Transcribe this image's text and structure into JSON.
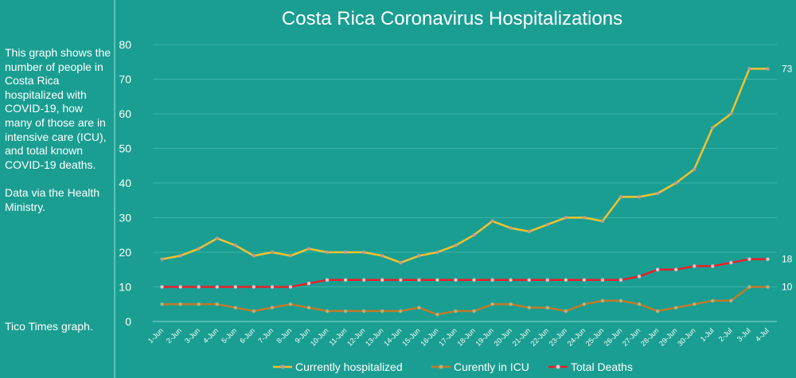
{
  "sidebar": {
    "description": "This graph shows the number of people in Costa Rica hospitalized with COVID-19, how many of those are in intensive care (ICU), and total known COVID-19 deaths.\n\nData via the Health Ministry.",
    "credit": "Tico Times graph."
  },
  "chart_data": {
    "type": "line",
    "title": "Costa Rica Coronavirus Hospitalizations",
    "xlabel": "",
    "ylabel": "",
    "ylim": [
      0,
      80
    ],
    "yticks": [
      "0",
      "10",
      "20",
      "30",
      "40",
      "50",
      "60",
      "70",
      "80"
    ],
    "grid": true,
    "legend_position": "bottom",
    "categories": [
      "1-Jun",
      "2-Jun",
      "3-Jun",
      "4-Jun",
      "5-Jun",
      "6-Jun",
      "7-Jun",
      "8-Jun",
      "9-Jun",
      "10-Jun",
      "11-Jun",
      "12-Jun",
      "13-Jun",
      "14-Jun",
      "15-Jun",
      "16-Jun",
      "17-Jun",
      "18-Jun",
      "19-Jun",
      "20-Jun",
      "21-Jun",
      "22-Jun",
      "23-Jun",
      "24-Jun",
      "25-Jun",
      "26-Jun",
      "27-Jun",
      "28-Jun",
      "29-Jun",
      "30-Jun",
      "1-Jul",
      "2-Jul",
      "3-Jul",
      "4-Jul"
    ],
    "series": [
      {
        "name": "Currently hospitalized",
        "color": "#f2c230",
        "marker_color": "#c49a8e",
        "values": [
          18,
          19,
          21,
          24,
          22,
          19,
          20,
          19,
          21,
          20,
          20,
          20,
          19,
          17,
          19,
          20,
          22,
          25,
          29,
          27,
          26,
          28,
          30,
          30,
          29,
          36,
          36,
          37,
          40,
          44,
          56,
          60,
          73,
          73
        ],
        "end_label": "73"
      },
      {
        "name": "Curently in ICU",
        "color": "#c17a2a",
        "marker_color": "#b7b07a",
        "values": [
          5,
          5,
          5,
          5,
          4,
          3,
          4,
          5,
          4,
          3,
          3,
          3,
          3,
          3,
          4,
          2,
          3,
          3,
          5,
          5,
          4,
          4,
          3,
          5,
          6,
          6,
          5,
          3,
          4,
          5,
          6,
          6,
          10,
          10
        ],
        "end_label": "10"
      },
      {
        "name": "Total Deaths",
        "color": "#e8202a",
        "marker_color": "#e8c8c8",
        "values": [
          10,
          10,
          10,
          10,
          10,
          10,
          10,
          10,
          11,
          12,
          12,
          12,
          12,
          12,
          12,
          12,
          12,
          12,
          12,
          12,
          12,
          12,
          12,
          12,
          12,
          12,
          13,
          15,
          15,
          16,
          16,
          17,
          18,
          18
        ],
        "end_label": "18"
      }
    ]
  },
  "colors": {
    "background": "#1a9e92",
    "divider": "#5cc2b8",
    "gridline": "#3ab2a6",
    "axis": "#8fd6cf",
    "text": "#ffffff"
  }
}
